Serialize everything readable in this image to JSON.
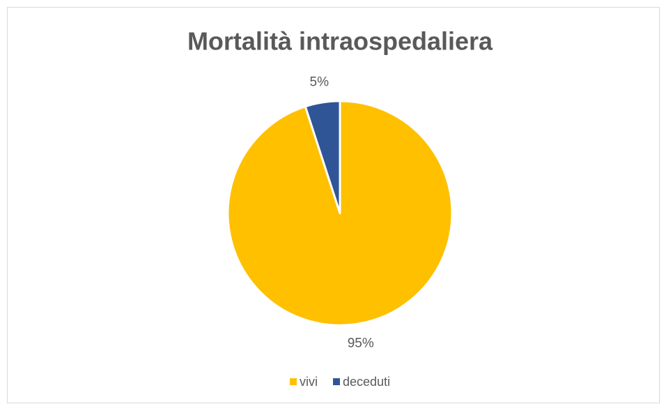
{
  "chart_data": {
    "type": "pie",
    "title": "Mortalità intraospedaliera",
    "categories": [
      "vivi",
      "deceduti"
    ],
    "values": [
      95,
      5
    ],
    "value_labels": [
      "95%",
      "5%"
    ],
    "colors": [
      "#FFC000",
      "#2F5597"
    ],
    "legend": "bottom"
  }
}
